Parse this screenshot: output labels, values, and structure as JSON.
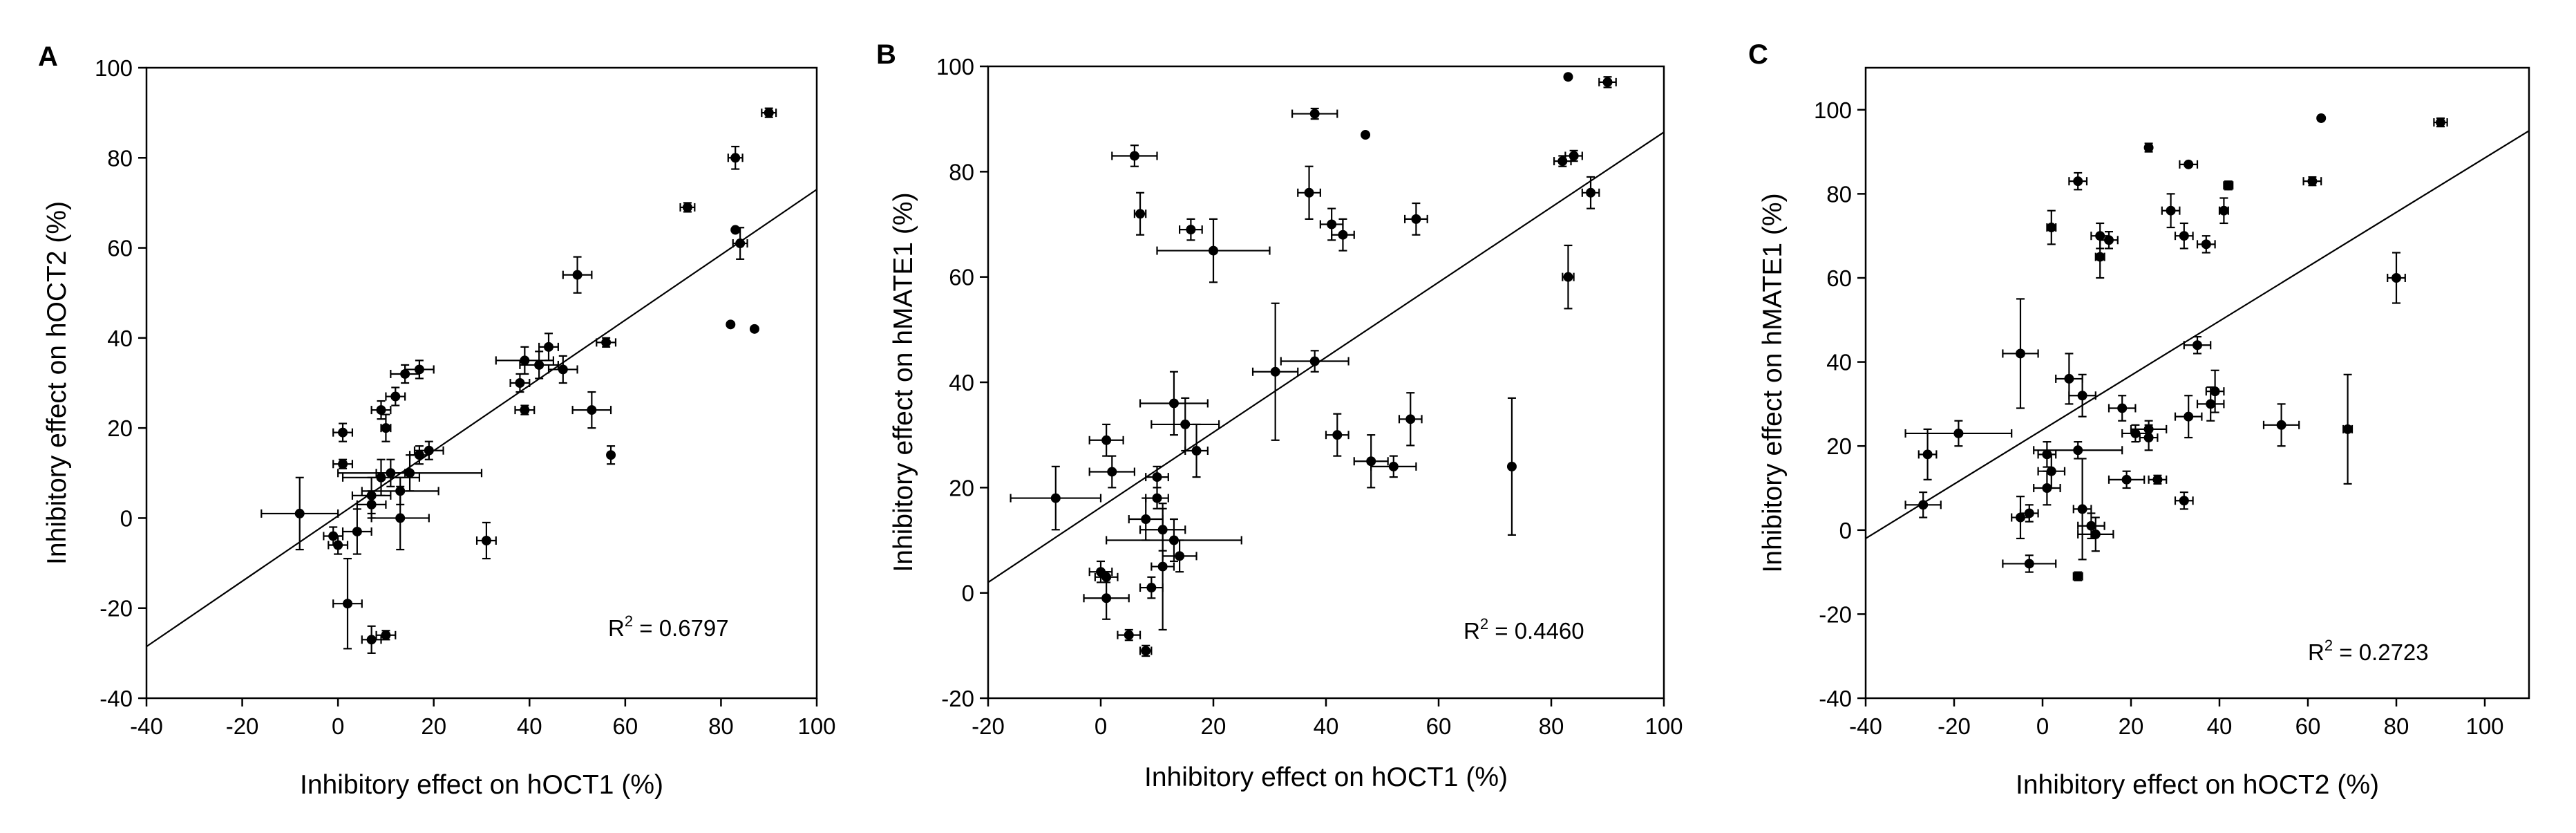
{
  "chart_data": [
    {
      "type": "scatter",
      "panel": "A",
      "xlabel": "Inhibitory effect on hOCT1 (%)",
      "ylabel": "Inhibitory effect on hOCT2 (%)",
      "xlim": [
        -40,
        100
      ],
      "ylim": [
        -40,
        100
      ],
      "xticks": [
        -40,
        -20,
        0,
        20,
        40,
        60,
        80,
        100
      ],
      "yticks": [
        -40,
        -20,
        0,
        20,
        40,
        60,
        80,
        100
      ],
      "x_tick_labels": [
        "-40",
        "-20",
        "0",
        "20",
        "40",
        "60",
        "80",
        "100"
      ],
      "y_tick_labels": [
        "-40",
        "-20",
        "0",
        "20",
        "40",
        "60",
        "80",
        "100"
      ],
      "r2_prefix": "R",
      "r2_sup": "2",
      "r2_value": " = 0.6797",
      "regression": {
        "slope": 0.7249,
        "intercept": 0.47
      },
      "points": [
        {
          "x": 90,
          "y": 90,
          "xerr": 1.5,
          "yerr": 1
        },
        {
          "x": 83,
          "y": 80,
          "xerr": 1.5,
          "yerr": 2.5
        },
        {
          "x": 73,
          "y": 69,
          "xerr": 1.5,
          "yerr": 1
        },
        {
          "x": 84,
          "y": 61,
          "xerr": 1.5,
          "yerr": 3.5
        },
        {
          "x": 83,
          "y": 64,
          "xerr": 0,
          "yerr": 0
        },
        {
          "x": 82,
          "y": 43,
          "xerr": 0,
          "yerr": 0
        },
        {
          "x": 87,
          "y": 42,
          "xerr": 0,
          "yerr": 0
        },
        {
          "x": 50,
          "y": 54,
          "xerr": 3,
          "yerr": 4
        },
        {
          "x": 56,
          "y": 39,
          "xerr": 2,
          "yerr": 1
        },
        {
          "x": 44,
          "y": 38,
          "xerr": 2,
          "yerr": 3
        },
        {
          "x": 39,
          "y": 35,
          "xerr": 6,
          "yerr": 3
        },
        {
          "x": 47,
          "y": 33,
          "xerr": 3,
          "yerr": 3
        },
        {
          "x": 42,
          "y": 34,
          "xerr": 4,
          "yerr": 3
        },
        {
          "x": 38,
          "y": 30,
          "xerr": 2,
          "yerr": 2
        },
        {
          "x": 39,
          "y": 24,
          "xerr": 2,
          "yerr": 1
        },
        {
          "x": 53,
          "y": 24,
          "xerr": 4,
          "yerr": 4
        },
        {
          "x": 57,
          "y": 14,
          "xerr": 0,
          "yerr": 2
        },
        {
          "x": 31,
          "y": -5,
          "xerr": 2,
          "yerr": 4
        },
        {
          "x": 17,
          "y": 33,
          "xerr": 3,
          "yerr": 2
        },
        {
          "x": 14,
          "y": 32,
          "xerr": 3,
          "yerr": 2
        },
        {
          "x": 12,
          "y": 27,
          "xerr": 2,
          "yerr": 2
        },
        {
          "x": 9,
          "y": 24,
          "xerr": 2,
          "yerr": 2
        },
        {
          "x": 1,
          "y": 19,
          "xerr": 2,
          "yerr": 2
        },
        {
          "x": 10,
          "y": 20,
          "xerr": 1,
          "yerr": 3
        },
        {
          "x": 19,
          "y": 15,
          "xerr": 3,
          "yerr": 2
        },
        {
          "x": 17,
          "y": 14,
          "xerr": 2,
          "yerr": 2
        },
        {
          "x": 1,
          "y": 12,
          "xerr": 2,
          "yerr": 1
        },
        {
          "x": 15,
          "y": 10,
          "xerr": 15,
          "yerr": 4
        },
        {
          "x": 9,
          "y": 9,
          "xerr": 8,
          "yerr": 4
        },
        {
          "x": 11,
          "y": 10,
          "xerr": 3,
          "yerr": 3
        },
        {
          "x": 13,
          "y": 6,
          "xerr": 8,
          "yerr": 3
        },
        {
          "x": 7,
          "y": 5,
          "xerr": 4,
          "yerr": 4
        },
        {
          "x": 7,
          "y": 3,
          "xerr": 3,
          "yerr": 3
        },
        {
          "x": -8,
          "y": 1,
          "xerr": 8,
          "yerr": 8
        },
        {
          "x": 13,
          "y": 0,
          "xerr": 6,
          "yerr": 7
        },
        {
          "x": 4,
          "y": -3,
          "xerr": 3,
          "yerr": 5
        },
        {
          "x": -1,
          "y": -4,
          "xerr": 2,
          "yerr": 2
        },
        {
          "x": 0,
          "y": -6,
          "xerr": 2,
          "yerr": 2
        },
        {
          "x": 2,
          "y": -19,
          "xerr": 3,
          "yerr": 10
        },
        {
          "x": 7,
          "y": -27,
          "xerr": 2,
          "yerr": 3
        },
        {
          "x": 10,
          "y": -26,
          "xerr": 2,
          "yerr": 1
        }
      ]
    },
    {
      "type": "scatter",
      "panel": "B",
      "xlabel": "Inhibitory effect on hOCT1 (%)",
      "ylabel": "Inhibitory effect on hMATE1 (%)",
      "xlim": [
        -20,
        100
      ],
      "ylim": [
        -20,
        100
      ],
      "xticks": [
        -20,
        0,
        20,
        40,
        60,
        80,
        100
      ],
      "yticks": [
        -20,
        0,
        20,
        40,
        60,
        80,
        100
      ],
      "x_tick_labels": [
        "-20",
        "0",
        "20",
        "40",
        "60",
        "80",
        "100"
      ],
      "y_tick_labels": [
        "-20",
        "0",
        "20",
        "40",
        "60",
        "80",
        "100"
      ],
      "r2_prefix": "R",
      "r2_sup": "2",
      "r2_value": " = 0.4460",
      "regression": {
        "slope": 0.7125,
        "intercept": 16.25
      },
      "points": [
        {
          "x": 83,
          "y": 98,
          "xerr": 0,
          "yerr": 0
        },
        {
          "x": 90,
          "y": 97,
          "xerr": 1.5,
          "yerr": 1
        },
        {
          "x": 38,
          "y": 91,
          "xerr": 4,
          "yerr": 1
        },
        {
          "x": 47,
          "y": 87,
          "xerr": 0,
          "yerr": 0
        },
        {
          "x": 6,
          "y": 83,
          "xerr": 4,
          "yerr": 2
        },
        {
          "x": 82,
          "y": 82,
          "xerr": 1.5,
          "yerr": 1
        },
        {
          "x": 84,
          "y": 83,
          "xerr": 1.5,
          "yerr": 1
        },
        {
          "x": 87,
          "y": 76,
          "xerr": 1.5,
          "yerr": 3
        },
        {
          "x": 37,
          "y": 76,
          "xerr": 2,
          "yerr": 5
        },
        {
          "x": 7,
          "y": 72,
          "xerr": 1,
          "yerr": 4
        },
        {
          "x": 41,
          "y": 70,
          "xerr": 2,
          "yerr": 3
        },
        {
          "x": 16,
          "y": 69,
          "xerr": 2,
          "yerr": 2
        },
        {
          "x": 43,
          "y": 68,
          "xerr": 2,
          "yerr": 3
        },
        {
          "x": 56,
          "y": 71,
          "xerr": 2,
          "yerr": 3
        },
        {
          "x": 20,
          "y": 65,
          "xerr": 10,
          "yerr": 6
        },
        {
          "x": 83,
          "y": 60,
          "xerr": 1,
          "yerr": 6
        },
        {
          "x": 38,
          "y": 44,
          "xerr": 6,
          "yerr": 2
        },
        {
          "x": 31,
          "y": 42,
          "xerr": 4,
          "yerr": 13
        },
        {
          "x": 13,
          "y": 36,
          "xerr": 6,
          "yerr": 6
        },
        {
          "x": 55,
          "y": 33,
          "xerr": 2,
          "yerr": 5
        },
        {
          "x": 15,
          "y": 32,
          "xerr": 6,
          "yerr": 5
        },
        {
          "x": 42,
          "y": 30,
          "xerr": 2,
          "yerr": 4
        },
        {
          "x": 1,
          "y": 29,
          "xerr": 3,
          "yerr": 3
        },
        {
          "x": 17,
          "y": 27,
          "xerr": 2,
          "yerr": 5
        },
        {
          "x": 48,
          "y": 25,
          "xerr": 3,
          "yerr": 5
        },
        {
          "x": 73,
          "y": 24,
          "xerr": 0,
          "yerr": 13
        },
        {
          "x": 52,
          "y": 24,
          "xerr": 4,
          "yerr": 2
        },
        {
          "x": 2,
          "y": 23,
          "xerr": 4,
          "yerr": 3
        },
        {
          "x": 10,
          "y": 22,
          "xerr": 2,
          "yerr": 2
        },
        {
          "x": -8,
          "y": 18,
          "xerr": 8,
          "yerr": 6
        },
        {
          "x": 10,
          "y": 18,
          "xerr": 2,
          "yerr": 2
        },
        {
          "x": 8,
          "y": 14,
          "xerr": 3,
          "yerr": 4
        },
        {
          "x": 11,
          "y": 12,
          "xerr": 4,
          "yerr": 4
        },
        {
          "x": 13,
          "y": 10,
          "xerr": 12,
          "yerr": 4
        },
        {
          "x": 14,
          "y": 7,
          "xerr": 3,
          "yerr": 3
        },
        {
          "x": 11,
          "y": 5,
          "xerr": 2,
          "yerr": 12
        },
        {
          "x": 0,
          "y": 4,
          "xerr": 2,
          "yerr": 2
        },
        {
          "x": 1,
          "y": 3,
          "xerr": 2,
          "yerr": 1
        },
        {
          "x": 9,
          "y": 1,
          "xerr": 2,
          "yerr": 2
        },
        {
          "x": 1,
          "y": -1,
          "xerr": 4,
          "yerr": 4
        },
        {
          "x": 5,
          "y": -8,
          "xerr": 2,
          "yerr": 1
        },
        {
          "x": 8,
          "y": -11,
          "xerr": 1,
          "yerr": 1
        }
      ]
    },
    {
      "type": "scatter",
      "panel": "C",
      "xlabel": "Inhibitory effect on hOCT2 (%)",
      "ylabel": "Inhibitory effect on hMATE1 (%)",
      "xlim": [
        -40,
        110
      ],
      "ylim": [
        -40,
        110
      ],
      "xticks": [
        -40,
        -20,
        0,
        20,
        40,
        60,
        80,
        100
      ],
      "yticks": [
        -40,
        -20,
        0,
        20,
        40,
        60,
        80,
        100
      ],
      "x_tick_labels": [
        "-40",
        "-20",
        "0",
        "20",
        "40",
        "60",
        "80",
        "100"
      ],
      "y_tick_labels": [
        "-40",
        "-20",
        "0",
        "20",
        "40",
        "60",
        "80",
        "100"
      ],
      "r2_prefix": "R",
      "r2_sup": "2",
      "r2_value": " = 0.2723",
      "regression": {
        "slope": 0.6467,
        "intercept": 23.87
      },
      "points": [
        {
          "x": 63,
          "y": 98,
          "xerr": 0,
          "yerr": 0
        },
        {
          "x": 90,
          "y": 97,
          "xerr": 1.5,
          "yerr": 1
        },
        {
          "x": 24,
          "y": 91,
          "xerr": 0,
          "yerr": 1
        },
        {
          "x": 33,
          "y": 87,
          "xerr": 2,
          "yerr": 0
        },
        {
          "x": 8,
          "y": 83,
          "xerr": 2,
          "yerr": 2
        },
        {
          "x": 61,
          "y": 83,
          "xerr": 2,
          "yerr": 1
        },
        {
          "x": 42,
          "y": 82,
          "xerr": 1,
          "yerr": 1
        },
        {
          "x": 29,
          "y": 76,
          "xerr": 2,
          "yerr": 4
        },
        {
          "x": 41,
          "y": 76,
          "xerr": 1,
          "yerr": 3
        },
        {
          "x": 2,
          "y": 72,
          "xerr": 1,
          "yerr": 4
        },
        {
          "x": 13,
          "y": 70,
          "xerr": 2,
          "yerr": 3
        },
        {
          "x": 32,
          "y": 70,
          "xerr": 2,
          "yerr": 3
        },
        {
          "x": 37,
          "y": 68,
          "xerr": 2,
          "yerr": 2
        },
        {
          "x": 15,
          "y": 69,
          "xerr": 2,
          "yerr": 2
        },
        {
          "x": 13,
          "y": 65,
          "xerr": 1,
          "yerr": 5
        },
        {
          "x": 80,
          "y": 60,
          "xerr": 2,
          "yerr": 6
        },
        {
          "x": 35,
          "y": 44,
          "xerr": 3,
          "yerr": 2
        },
        {
          "x": -5,
          "y": 42,
          "xerr": 4,
          "yerr": 13
        },
        {
          "x": 6,
          "y": 36,
          "xerr": 3,
          "yerr": 6
        },
        {
          "x": 39,
          "y": 33,
          "xerr": 2,
          "yerr": 5
        },
        {
          "x": 9,
          "y": 32,
          "xerr": 3,
          "yerr": 5
        },
        {
          "x": 38,
          "y": 30,
          "xerr": 3,
          "yerr": 4
        },
        {
          "x": 18,
          "y": 29,
          "xerr": 3,
          "yerr": 3
        },
        {
          "x": 33,
          "y": 27,
          "xerr": 3,
          "yerr": 5
        },
        {
          "x": 54,
          "y": 25,
          "xerr": 4,
          "yerr": 5
        },
        {
          "x": 69,
          "y": 24,
          "xerr": 1,
          "yerr": 13
        },
        {
          "x": 24,
          "y": 24,
          "xerr": 4,
          "yerr": 2
        },
        {
          "x": -19,
          "y": 23,
          "xerr": 12,
          "yerr": 3
        },
        {
          "x": 21,
          "y": 23,
          "xerr": 3,
          "yerr": 2
        },
        {
          "x": 24,
          "y": 22,
          "xerr": 2,
          "yerr": 3
        },
        {
          "x": 8,
          "y": 19,
          "xerr": 10,
          "yerr": 2
        },
        {
          "x": -26,
          "y": 18,
          "xerr": 2,
          "yerr": 6
        },
        {
          "x": 1,
          "y": 18,
          "xerr": 2,
          "yerr": 3
        },
        {
          "x": 2,
          "y": 14,
          "xerr": 3,
          "yerr": 4
        },
        {
          "x": 19,
          "y": 12,
          "xerr": 4,
          "yerr": 2
        },
        {
          "x": 26,
          "y": 12,
          "xerr": 2,
          "yerr": 1
        },
        {
          "x": 1,
          "y": 10,
          "xerr": 3,
          "yerr": 4
        },
        {
          "x": 32,
          "y": 7,
          "xerr": 2,
          "yerr": 2
        },
        {
          "x": -27,
          "y": 6,
          "xerr": 4,
          "yerr": 3
        },
        {
          "x": 9,
          "y": 5,
          "xerr": 2,
          "yerr": 12
        },
        {
          "x": -5,
          "y": 3,
          "xerr": 2,
          "yerr": 5
        },
        {
          "x": -3,
          "y": 4,
          "xerr": 2,
          "yerr": 2
        },
        {
          "x": 11,
          "y": 1,
          "xerr": 3,
          "yerr": 3
        },
        {
          "x": 12,
          "y": -1,
          "xerr": 4,
          "yerr": 4
        },
        {
          "x": -3,
          "y": -8,
          "xerr": 6,
          "yerr": 2
        },
        {
          "x": 8,
          "y": -11,
          "xerr": 1,
          "yerr": 1
        }
      ]
    }
  ]
}
